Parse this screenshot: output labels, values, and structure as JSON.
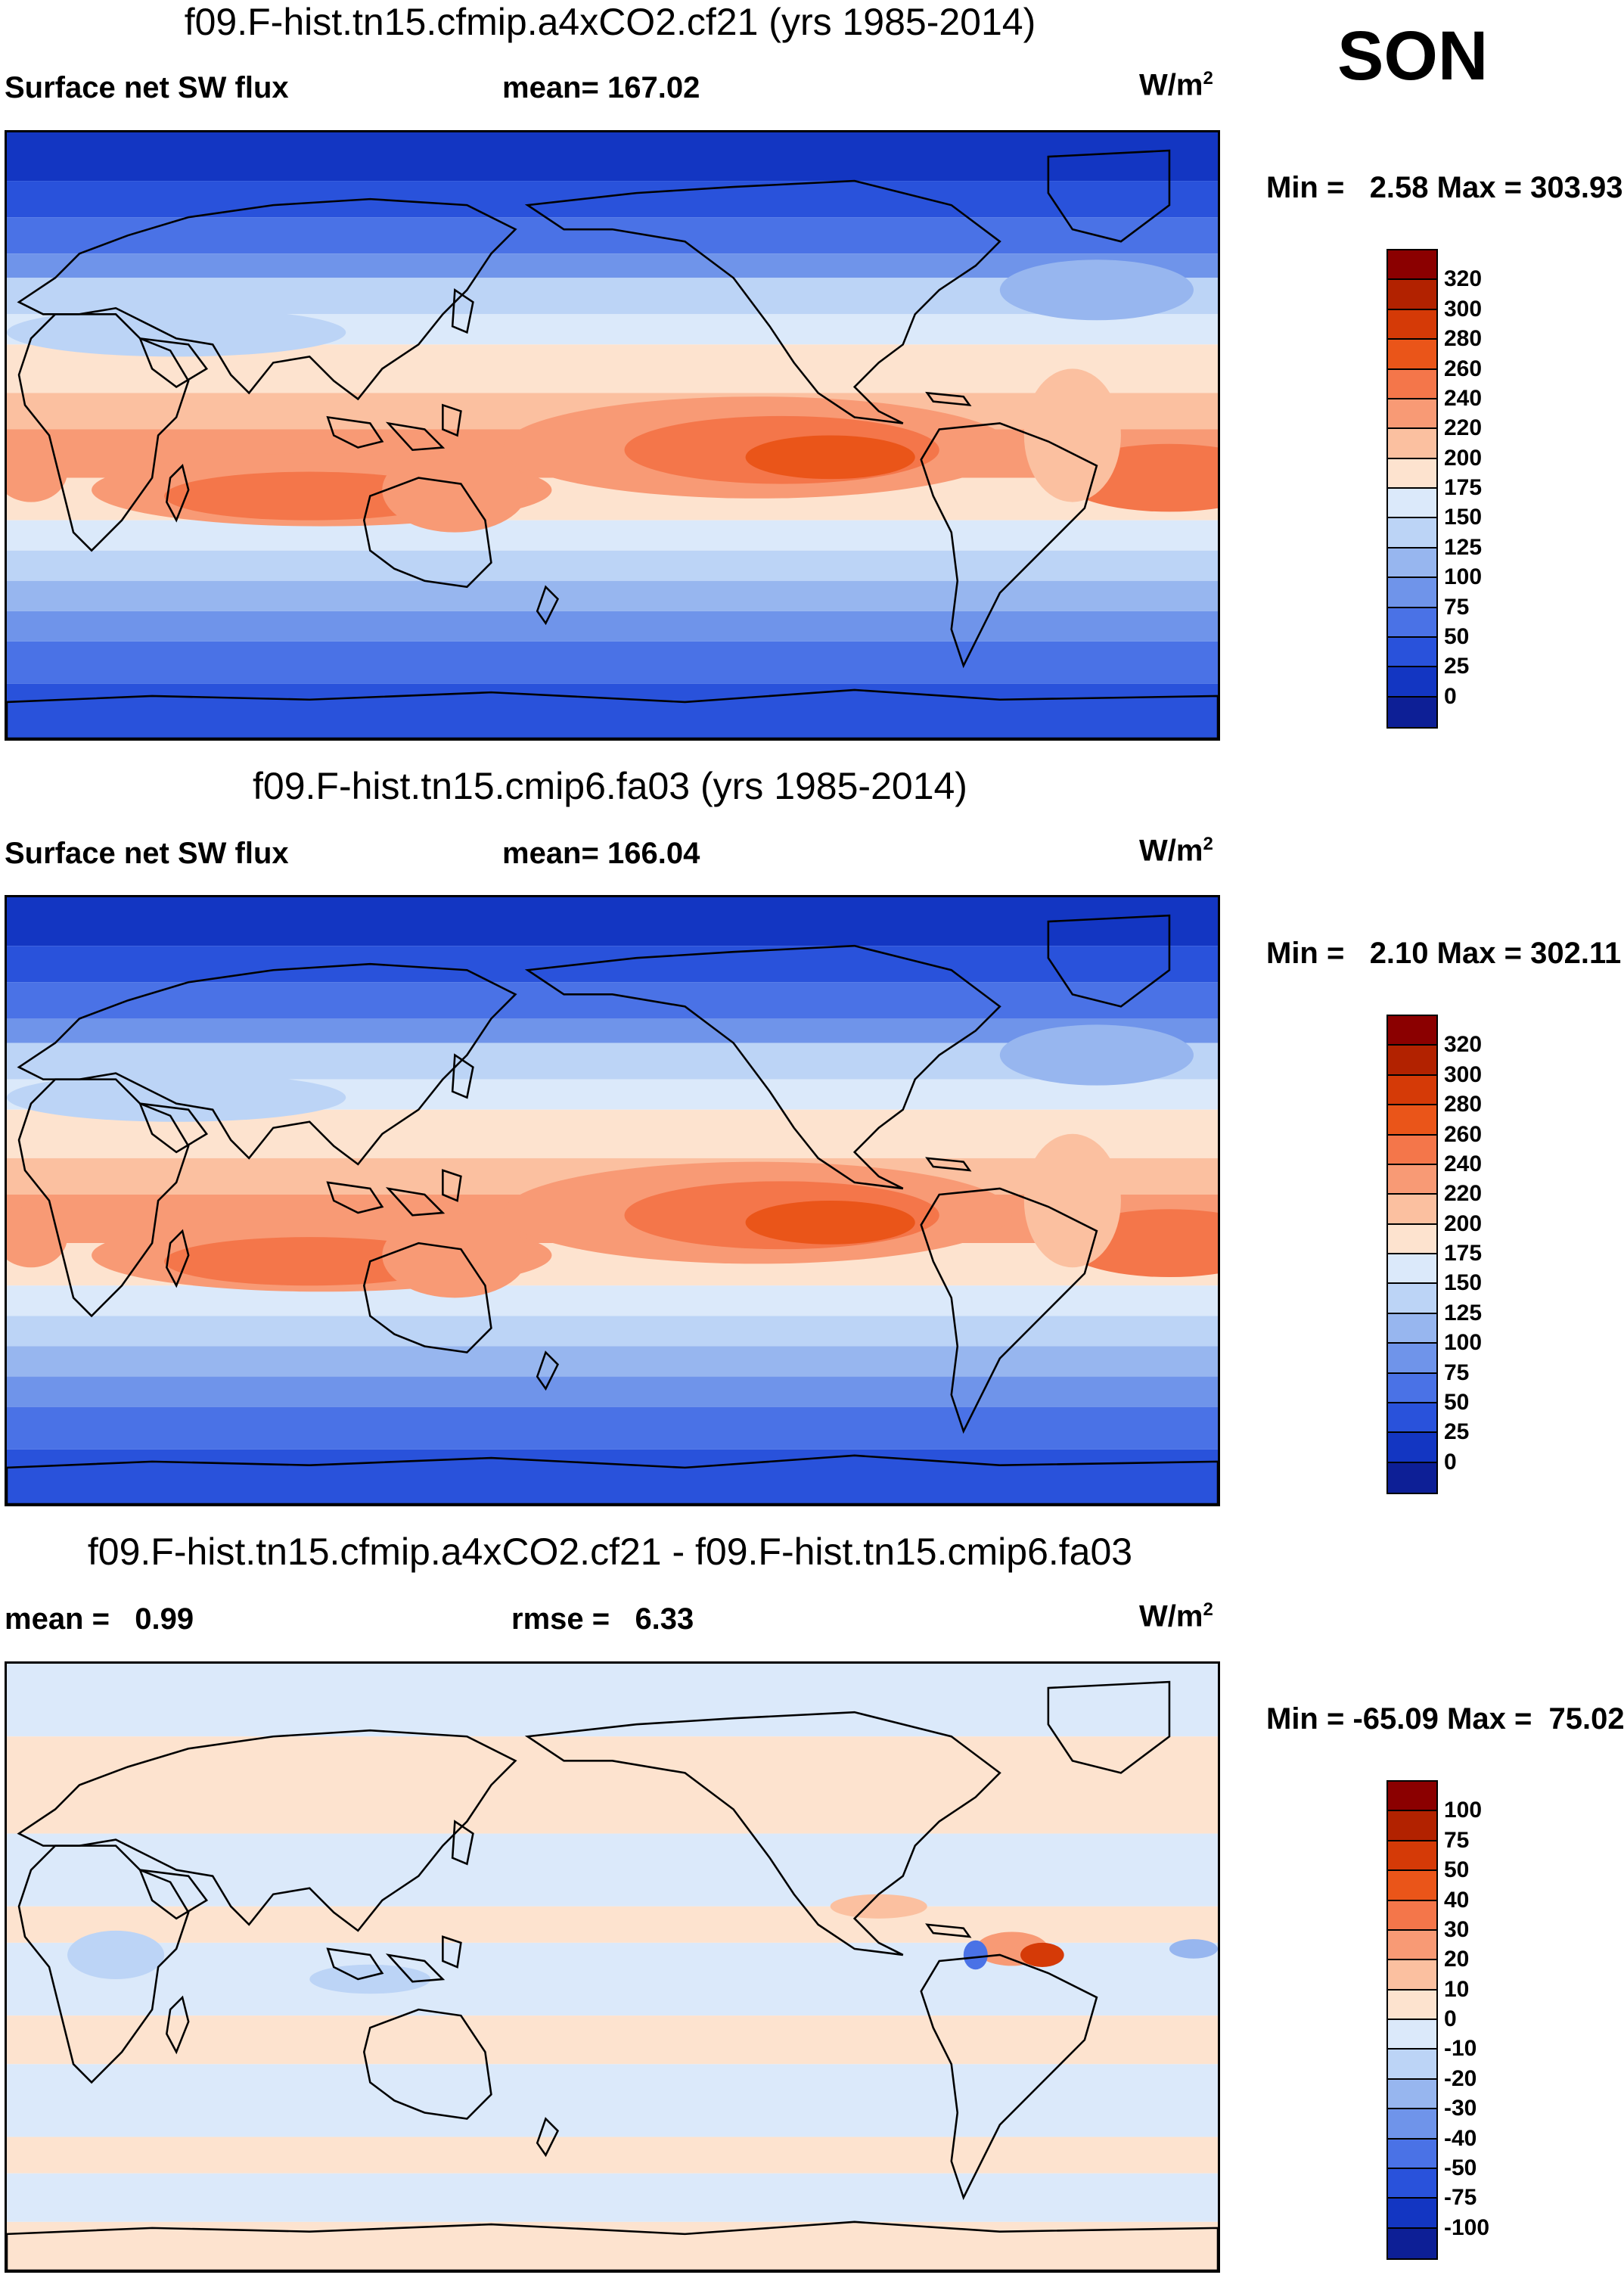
{
  "season": "SON",
  "units_base": "W/m",
  "units_exp": "2",
  "panels": [
    {
      "title": "f09.F-hist.tn15.cfmip.a4xCO2.cf21 (yrs 1985-2014)",
      "left_label": "Surface net SW flux",
      "center_label": "mean= 167.02",
      "min_label": "Min =",
      "min_value": "2.58",
      "max_label": "Max =",
      "max_value": "303.93",
      "colorbar": {
        "ticks": [
          "320",
          "300",
          "280",
          "260",
          "240",
          "220",
          "200",
          "175",
          "150",
          "125",
          "100",
          "75",
          "50",
          "25",
          "0"
        ],
        "colors": [
          "#8b0000",
          "#b22200",
          "#d53a07",
          "#ea5519",
          "#f4764a",
          "#f89a75",
          "#fbc0a0",
          "#fde3cf",
          "#dbe9fa",
          "#bcd4f6",
          "#97b6ef",
          "#6f94ea",
          "#4a72e6",
          "#2952db",
          "#1336c2",
          "#0d1f96"
        ]
      }
    },
    {
      "title": "f09.F-hist.tn15.cmip6.fa03 (yrs 1985-2014)",
      "left_label": "Surface net SW flux",
      "center_label": "mean= 166.04",
      "min_label": "Min =",
      "min_value": "2.10",
      "max_label": "Max =",
      "max_value": "302.11",
      "colorbar": {
        "ticks": [
          "320",
          "300",
          "280",
          "260",
          "240",
          "220",
          "200",
          "175",
          "150",
          "125",
          "100",
          "75",
          "50",
          "25",
          "0"
        ],
        "colors": [
          "#8b0000",
          "#b22200",
          "#d53a07",
          "#ea5519",
          "#f4764a",
          "#f89a75",
          "#fbc0a0",
          "#fde3cf",
          "#dbe9fa",
          "#bcd4f6",
          "#97b6ef",
          "#6f94ea",
          "#4a72e6",
          "#2952db",
          "#1336c2",
          "#0d1f96"
        ]
      }
    },
    {
      "title": "f09.F-hist.tn15.cfmip.a4xCO2.cf21 - f09.F-hist.tn15.cmip6.fa03",
      "left_label": "mean =   0.99",
      "center_label": "rmse =   6.33",
      "min_label": "Min =",
      "min_value": "-65.09",
      "max_label": "Max =",
      "max_value": "75.02",
      "colorbar": {
        "ticks": [
          "100",
          "75",
          "50",
          "40",
          "30",
          "20",
          "10",
          "0",
          "-10",
          "-20",
          "-30",
          "-40",
          "-50",
          "-75",
          "-100"
        ],
        "colors": [
          "#8b0000",
          "#b22200",
          "#d53a07",
          "#ea5519",
          "#f4764a",
          "#f89a75",
          "#fbc0a0",
          "#fde3cf",
          "#dbe9fa",
          "#bcd4f6",
          "#97b6ef",
          "#6f94ea",
          "#4a72e6",
          "#2952db",
          "#1336c2",
          "#0d1f96"
        ]
      }
    }
  ]
}
